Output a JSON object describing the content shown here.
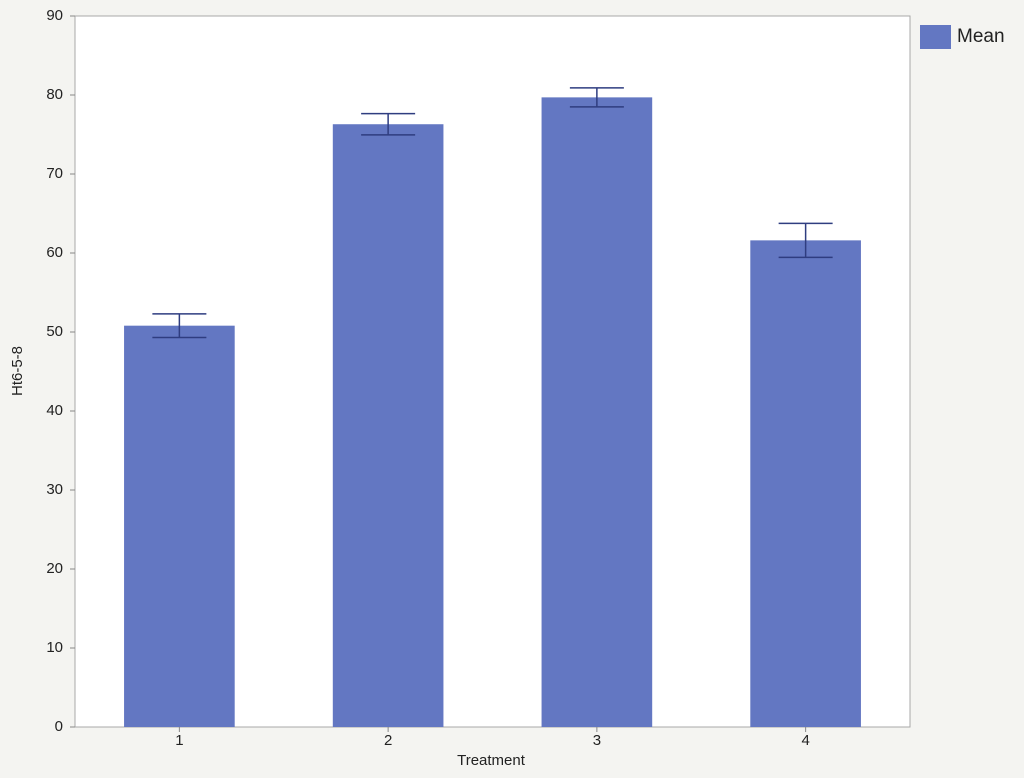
{
  "chart_data": {
    "type": "bar",
    "x_label": "Treatment",
    "y_label": "Ht6-5-8",
    "categories": [
      "1",
      "2",
      "3",
      "4"
    ],
    "series": [
      {
        "name": "Mean",
        "color": "#6377c2",
        "values": [
          50.8,
          76.3,
          79.7,
          61.6
        ],
        "errors": [
          1.5,
          1.35,
          1.2,
          2.15
        ]
      }
    ],
    "ylim": [
      0,
      90
    ],
    "yticks": [
      0,
      10,
      20,
      30,
      40,
      50,
      60,
      70,
      80,
      90
    ],
    "grid": false,
    "legend": "right"
  }
}
